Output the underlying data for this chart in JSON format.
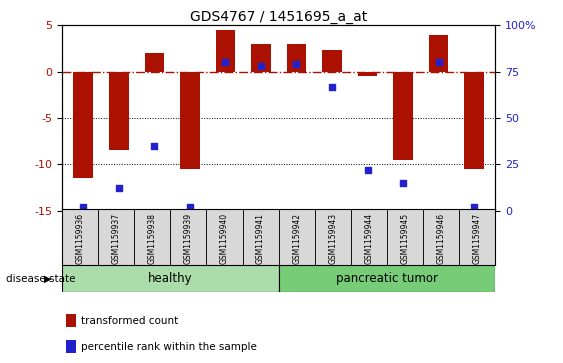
{
  "title": "GDS4767 / 1451695_a_at",
  "samples": [
    "GSM1159936",
    "GSM1159937",
    "GSM1159938",
    "GSM1159939",
    "GSM1159940",
    "GSM1159941",
    "GSM1159942",
    "GSM1159943",
    "GSM1159944",
    "GSM1159945",
    "GSM1159946",
    "GSM1159947"
  ],
  "transformed_count": [
    -11.5,
    -8.5,
    2.0,
    -10.5,
    4.5,
    3.0,
    3.0,
    2.3,
    -0.5,
    -9.5,
    4.0,
    -10.5
  ],
  "percentile_rank": [
    2,
    12,
    35,
    2,
    80,
    78,
    79,
    67,
    22,
    15,
    80,
    2
  ],
  "disease_state": [
    "healthy",
    "healthy",
    "healthy",
    "healthy",
    "healthy",
    "healthy",
    "pancreatic tumor",
    "pancreatic tumor",
    "pancreatic tumor",
    "pancreatic tumor",
    "pancreatic tumor",
    "pancreatic tumor"
  ],
  "bar_color": "#aa1100",
  "dot_color": "#2222cc",
  "ylim_left": [
    -15,
    5
  ],
  "ylim_right": [
    0,
    100
  ],
  "yticks_left": [
    -15,
    -10,
    -5,
    0,
    5
  ],
  "yticks_right": [
    0,
    25,
    50,
    75,
    100
  ],
  "ytick_labels_right": [
    "0",
    "25",
    "50",
    "75",
    "100%"
  ],
  "healthy_color": "#aaddaa",
  "tumor_color": "#77cc77",
  "label_bg_color": "#d8d8d8",
  "title_fontsize": 10,
  "tick_fontsize": 8,
  "n_healthy": 6,
  "n_tumor": 6
}
